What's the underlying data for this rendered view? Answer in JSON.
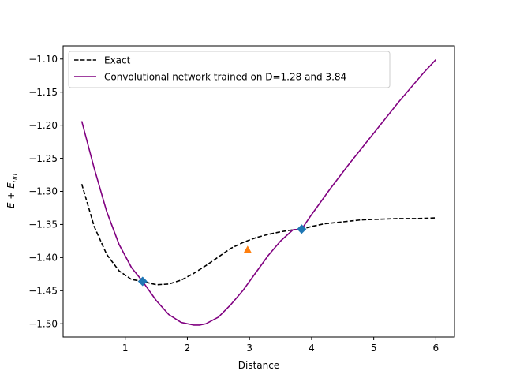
{
  "chart_data": {
    "type": "line",
    "xlabel": "Distance",
    "ylabel": "E + E_nn",
    "xlim": [
      0.0,
      6.3
    ],
    "ylim": [
      -1.52,
      -1.08
    ],
    "xticks": [
      1,
      2,
      3,
      4,
      5,
      6
    ],
    "yticks": [
      -1.1,
      -1.15,
      -1.2,
      -1.25,
      -1.3,
      -1.35,
      -1.4,
      -1.45,
      -1.5
    ],
    "grid": false,
    "legend_position": "top-left",
    "series": [
      {
        "name": "Exact",
        "style": "dashed",
        "color": "#000000",
        "x": [
          0.3,
          0.5,
          0.7,
          0.9,
          1.1,
          1.28,
          1.5,
          1.7,
          1.9,
          2.1,
          2.3,
          2.5,
          2.7,
          2.9,
          3.1,
          3.3,
          3.5,
          3.7,
          3.84,
          4.0,
          4.2,
          4.5,
          4.8,
          5.1,
          5.4,
          5.7,
          6.0
        ],
        "y": [
          -1.289,
          -1.353,
          -1.395,
          -1.42,
          -1.433,
          -1.436,
          -1.441,
          -1.44,
          -1.434,
          -1.424,
          -1.412,
          -1.399,
          -1.386,
          -1.377,
          -1.37,
          -1.365,
          -1.361,
          -1.358,
          -1.357,
          -1.353,
          -1.349,
          -1.346,
          -1.343,
          -1.342,
          -1.341,
          -1.341,
          -1.34
        ]
      },
      {
        "name": "Convolutional network trained on D=1.28 and 3.84",
        "style": "solid",
        "color": "#800080",
        "x": [
          0.3,
          0.5,
          0.7,
          0.9,
          1.1,
          1.28,
          1.5,
          1.7,
          1.9,
          2.1,
          2.2,
          2.3,
          2.5,
          2.7,
          2.9,
          3.1,
          3.3,
          3.5,
          3.7,
          3.84,
          4.0,
          4.3,
          4.6,
          5.0,
          5.4,
          5.8,
          6.0
        ],
        "y": [
          -1.194,
          -1.265,
          -1.33,
          -1.38,
          -1.415,
          -1.436,
          -1.465,
          -1.486,
          -1.498,
          -1.502,
          -1.502,
          -1.5,
          -1.49,
          -1.471,
          -1.449,
          -1.423,
          -1.397,
          -1.375,
          -1.358,
          -1.357,
          -1.335,
          -1.296,
          -1.259,
          -1.212,
          -1.165,
          -1.121,
          -1.101
        ]
      }
    ],
    "markers": [
      {
        "x": 1.28,
        "y": -1.436,
        "shape": "diamond",
        "color": "#1f77b4"
      },
      {
        "x": 3.84,
        "y": -1.357,
        "shape": "diamond",
        "color": "#1f77b4"
      },
      {
        "x": 2.97,
        "y": -1.388,
        "shape": "triangle",
        "color": "#ff7f0e"
      }
    ]
  }
}
